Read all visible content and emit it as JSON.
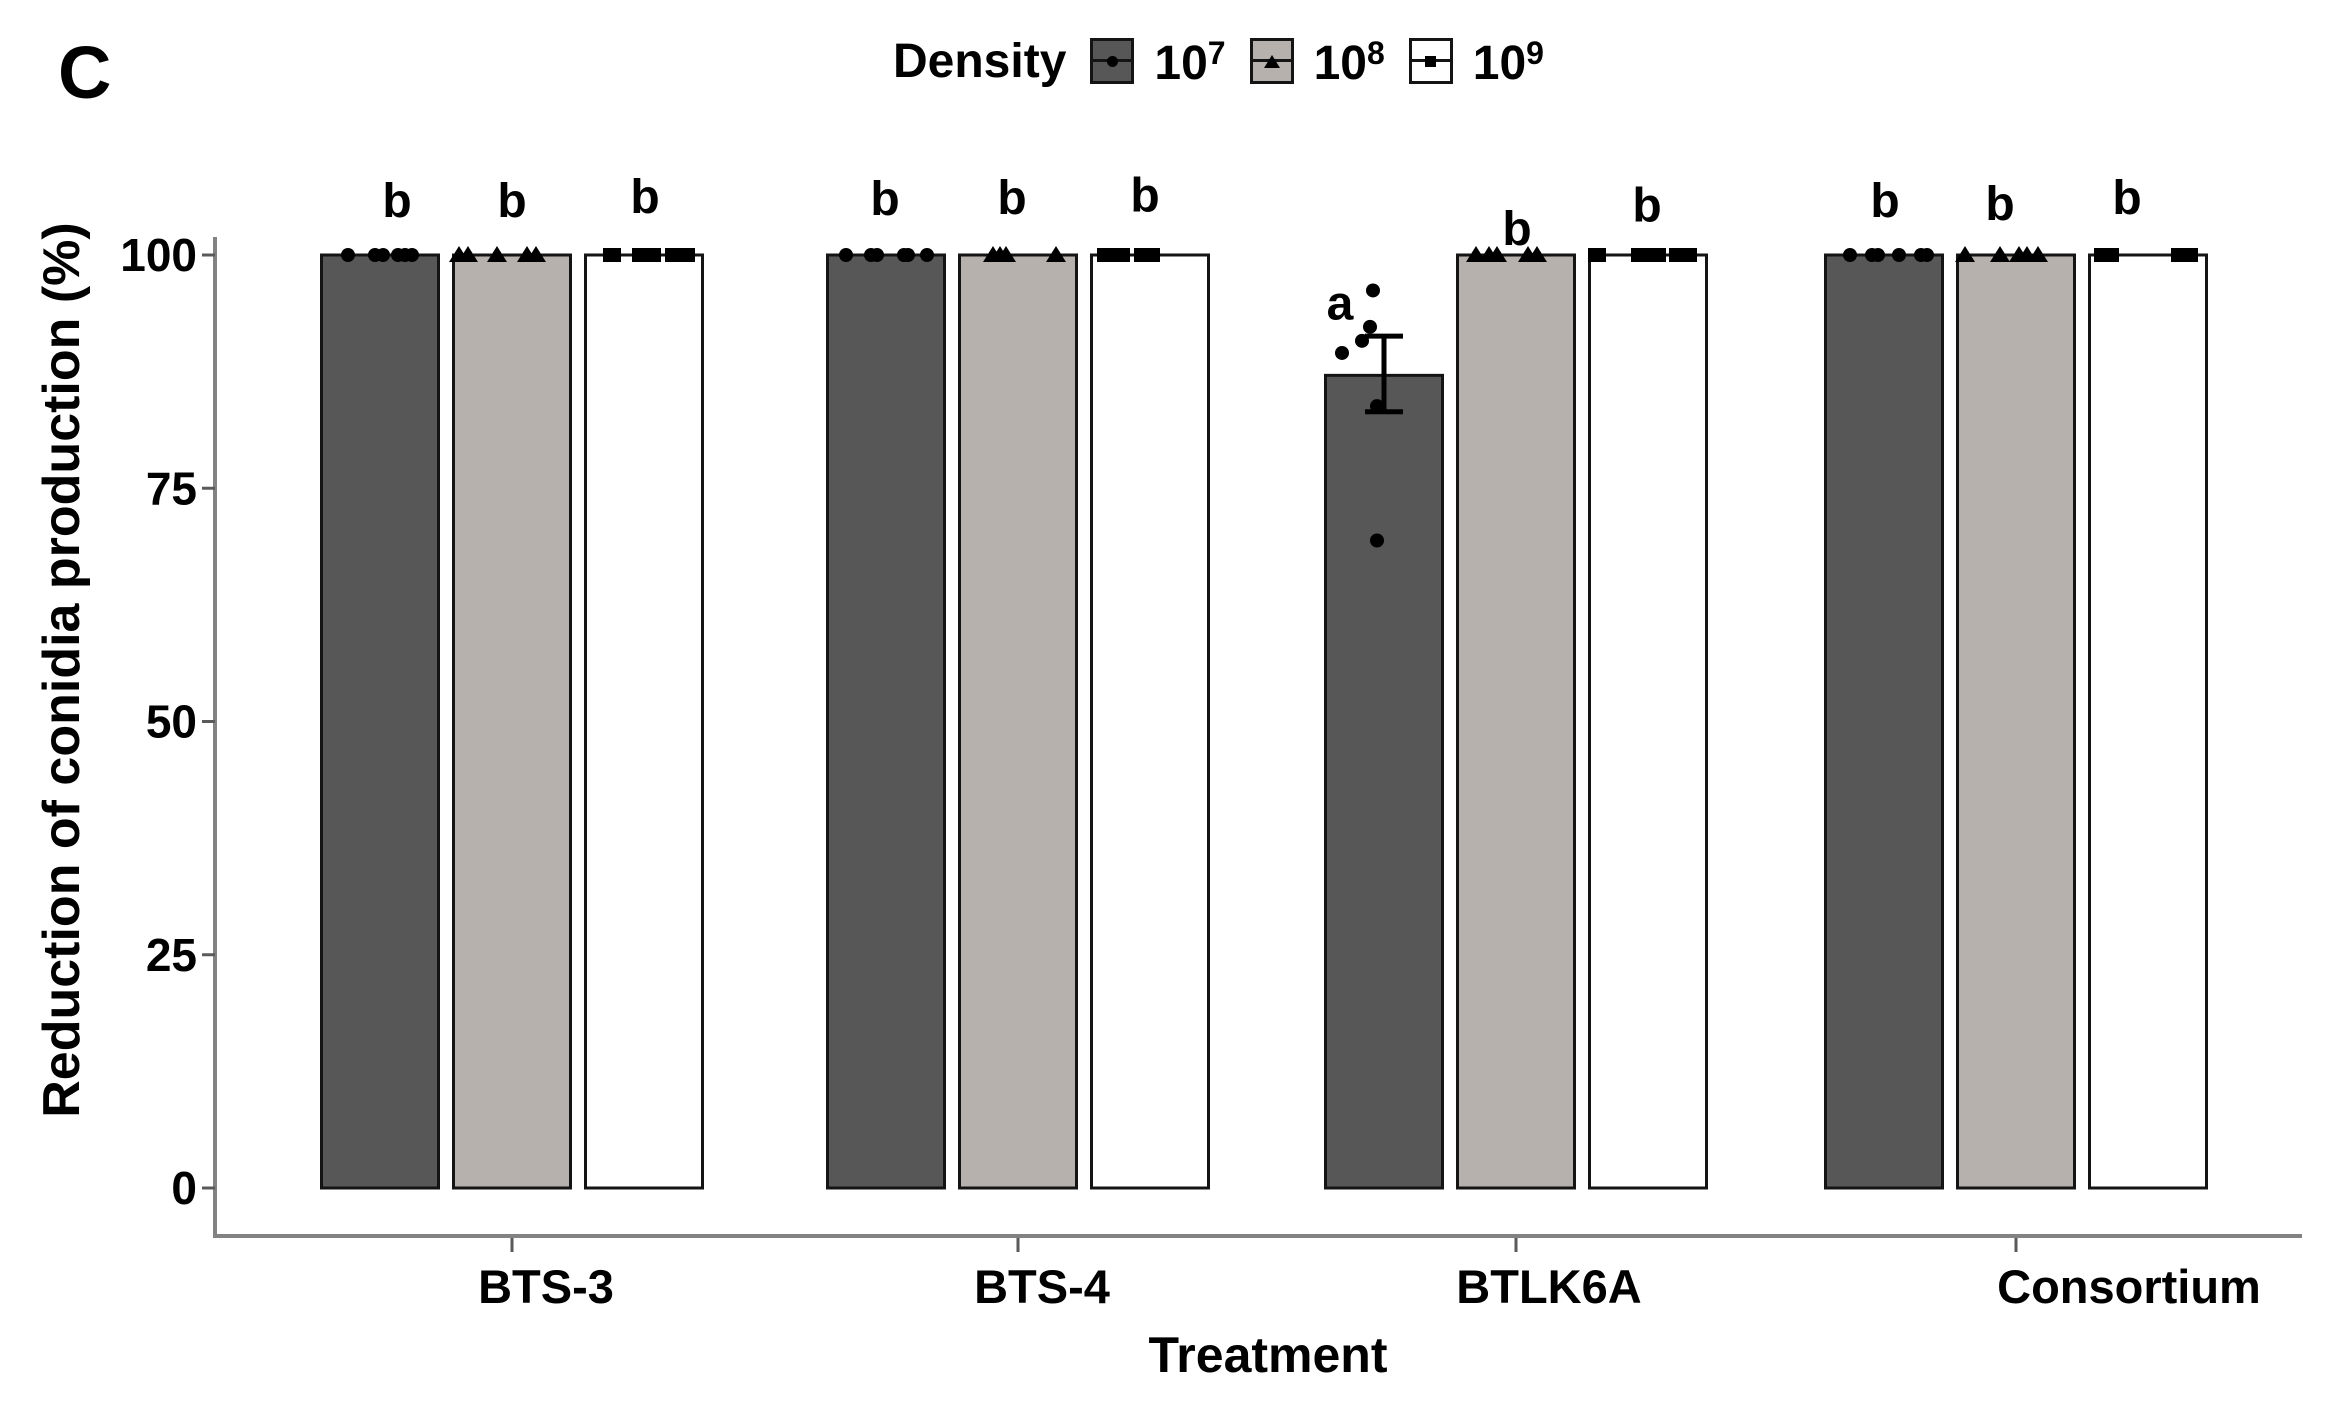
{
  "figure": {
    "panel_label": "C",
    "x_axis_title": "Treatment",
    "y_axis_title": "Reduction of conidia production (%)"
  },
  "legend": {
    "title": "Density",
    "items": [
      {
        "base": "10",
        "exp": "7",
        "fill": "#575757",
        "marker": "circle"
      },
      {
        "base": "10",
        "exp": "8",
        "fill": "#b6b1ad",
        "marker": "triangle"
      },
      {
        "base": "10",
        "exp": "9",
        "fill": "#ffffff",
        "marker": "square"
      }
    ]
  },
  "colors": {
    "bar_dark": "#575757",
    "bar_light": "#b6b1ad",
    "bar_white": "#ffffff",
    "bar_border": "#141414",
    "axis_line": "#828282",
    "tick": "#5a5a5a",
    "text": "#000000"
  },
  "chart_data": {
    "type": "bar",
    "title": "",
    "xlabel": "Treatment",
    "ylabel": "Reduction of conidia production (%)",
    "categories": [
      "BTS-3",
      "BTS-4",
      "BTLK6A",
      "Consortium"
    ],
    "yticks": [
      0,
      25,
      50,
      75,
      100
    ],
    "ylim": [
      0,
      110
    ],
    "legend_title": "Density",
    "legend_position": "top",
    "grid": false,
    "series": [
      {
        "name": "10^7",
        "fill": "#575757",
        "marker": "circle",
        "values": [
          100,
          100,
          87.1,
          100
        ],
        "points": [
          [
            [
              -32,
              100
            ],
            [
              -5,
              100
            ],
            [
              3,
              100
            ],
            [
              18,
              100
            ],
            [
              25,
              100
            ],
            [
              32,
              100
            ]
          ],
          [
            [
              -40,
              100
            ],
            [
              -15,
              100
            ],
            [
              -9,
              100
            ],
            [
              18,
              100
            ],
            [
              22,
              100
            ],
            [
              41,
              100
            ]
          ],
          [
            [
              -11,
              96.2
            ],
            [
              -14,
              92.3
            ],
            [
              -22,
              90.8
            ],
            [
              -42,
              89.5
            ],
            [
              -7,
              83.8
            ],
            [
              -7,
              69.4
            ]
          ],
          [
            [
              -34,
              100
            ],
            [
              -12,
              100
            ],
            [
              -6,
              100
            ],
            [
              15,
              100
            ],
            [
              37,
              100
            ],
            [
              43,
              100
            ]
          ]
        ]
      },
      {
        "name": "10^8",
        "fill": "#b6b1ad",
        "marker": "triangle",
        "values": [
          100,
          100,
          100,
          100
        ],
        "points": [
          [
            [
              -53,
              100
            ],
            [
              -44,
              100
            ],
            [
              -15,
              100
            ],
            [
              15,
              100
            ],
            [
              24,
              100
            ]
          ],
          [
            [
              -25,
              100
            ],
            [
              -18,
              100
            ],
            [
              -12,
              100
            ],
            [
              38,
              100
            ]
          ],
          [
            [
              -40,
              100
            ],
            [
              -27,
              100
            ],
            [
              -19,
              100
            ],
            [
              12,
              100
            ],
            [
              21,
              100
            ]
          ],
          [
            [
              -51,
              100
            ],
            [
              -16,
              100
            ],
            [
              3,
              100
            ],
            [
              11,
              100
            ],
            [
              22,
              100
            ]
          ]
        ]
      },
      {
        "name": "10^9",
        "fill": "#ffffff",
        "marker": "square",
        "values": [
          100,
          100,
          100,
          100
        ],
        "points": [
          [
            [
              -32,
              100
            ],
            [
              -3,
              100
            ],
            [
              8,
              100
            ],
            [
              30,
              100
            ],
            [
              42,
              100
            ]
          ],
          [
            [
              -44,
              100
            ],
            [
              -36,
              100
            ],
            [
              -29,
              100
            ],
            [
              -7,
              100
            ],
            [
              1,
              100
            ]
          ],
          [
            [
              -51,
              100
            ],
            [
              -8,
              100
            ],
            [
              9,
              100
            ],
            [
              30,
              100
            ],
            [
              40,
              100
            ]
          ],
          [
            [
              -45,
              100
            ],
            [
              -38,
              100
            ],
            [
              32,
              100
            ],
            [
              41,
              100
            ]
          ]
        ]
      }
    ],
    "error_bars": [
      {
        "category": "BTLK6A",
        "series": "10^7",
        "mean": 87.1,
        "upper": 91.3,
        "lower": 83.2
      }
    ],
    "sig_letters": [
      {
        "text": "b",
        "cat": 0,
        "series": 0,
        "dx": 17,
        "y": 105.9
      },
      {
        "text": "b",
        "cat": 0,
        "series": 1,
        "dx": 0,
        "y": 105.9
      },
      {
        "text": "b",
        "cat": 0,
        "series": 2,
        "dx": 1,
        "y": 106.3
      },
      {
        "text": "b",
        "cat": 1,
        "series": 0,
        "dx": -1,
        "y": 106.1
      },
      {
        "text": "b",
        "cat": 1,
        "series": 1,
        "dx": -6,
        "y": 106.2
      },
      {
        "text": "b",
        "cat": 1,
        "series": 2,
        "dx": -5,
        "y": 106.5
      },
      {
        "text": "a",
        "cat": 2,
        "series": 0,
        "dx": -44,
        "y": 94.9
      },
      {
        "text": "b",
        "cat": 2,
        "series": 1,
        "dx": 1,
        "y": 102.9
      },
      {
        "text": "b",
        "cat": 2,
        "series": 2,
        "dx": -1,
        "y": 105.4
      },
      {
        "text": "b",
        "cat": 3,
        "series": 0,
        "dx": 1,
        "y": 105.9
      },
      {
        "text": "b",
        "cat": 3,
        "series": 1,
        "dx": -16,
        "y": 105.6
      },
      {
        "text": "b",
        "cat": 3,
        "series": 2,
        "dx": -21,
        "y": 106.2
      }
    ]
  }
}
